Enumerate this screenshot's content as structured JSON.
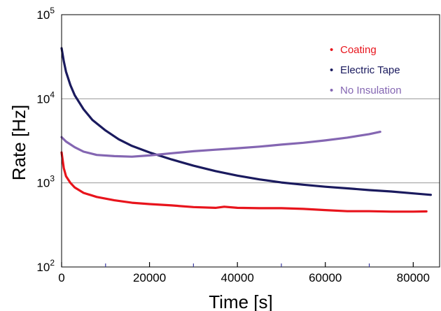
{
  "chart_data": {
    "type": "line",
    "title": "",
    "xlabel": "Time [s]",
    "ylabel": "Rate [Hz]",
    "xlim": [
      0,
      86000
    ],
    "ylim": [
      100,
      100000
    ],
    "yscale": "log",
    "x_ticks": [
      "0",
      "20000",
      "40000",
      "60000",
      "80000"
    ],
    "x_tick_values": [
      0,
      20000,
      40000,
      60000,
      80000
    ],
    "y_ticks": [
      {
        "base": "10",
        "exp": "2",
        "value": 100
      },
      {
        "base": "10",
        "exp": "3",
        "value": 1000
      },
      {
        "base": "10",
        "exp": "4",
        "value": 10000
      },
      {
        "base": "10",
        "exp": "5",
        "value": 100000
      }
    ],
    "grid": "horizontal at decades",
    "legend_position": "top-right",
    "legend_marker": "•",
    "series": [
      {
        "name": "Coating",
        "color": "#e8141c",
        "points": [
          [
            0,
            2300
          ],
          [
            500,
            1500
          ],
          [
            1000,
            1200
          ],
          [
            2000,
            1000
          ],
          [
            3000,
            880
          ],
          [
            5000,
            760
          ],
          [
            8000,
            680
          ],
          [
            12000,
            620
          ],
          [
            16000,
            580
          ],
          [
            20000,
            560
          ],
          [
            25000,
            540
          ],
          [
            30000,
            515
          ],
          [
            35000,
            505
          ],
          [
            37000,
            520
          ],
          [
            40000,
            505
          ],
          [
            45000,
            500
          ],
          [
            50000,
            500
          ],
          [
            55000,
            490
          ],
          [
            60000,
            475
          ],
          [
            65000,
            460
          ],
          [
            70000,
            460
          ],
          [
            75000,
            455
          ],
          [
            80000,
            455
          ],
          [
            83000,
            458
          ]
        ]
      },
      {
        "name": "Electric Tape",
        "color": "#1a1a5e",
        "points": [
          [
            0,
            40000
          ],
          [
            500,
            28000
          ],
          [
            1000,
            21000
          ],
          [
            2000,
            14500
          ],
          [
            3000,
            11000
          ],
          [
            5000,
            7500
          ],
          [
            7000,
            5600
          ],
          [
            10000,
            4200
          ],
          [
            13000,
            3300
          ],
          [
            16000,
            2750
          ],
          [
            20000,
            2300
          ],
          [
            25000,
            1900
          ],
          [
            30000,
            1600
          ],
          [
            35000,
            1380
          ],
          [
            40000,
            1220
          ],
          [
            45000,
            1100
          ],
          [
            50000,
            1010
          ],
          [
            55000,
            950
          ],
          [
            60000,
            900
          ],
          [
            65000,
            860
          ],
          [
            70000,
            820
          ],
          [
            75000,
            790
          ],
          [
            80000,
            750
          ],
          [
            84000,
            720
          ]
        ]
      },
      {
        "name": "No Insulation",
        "color": "#8466b2",
        "points": [
          [
            0,
            3500
          ],
          [
            1000,
            3100
          ],
          [
            3000,
            2650
          ],
          [
            5000,
            2350
          ],
          [
            8000,
            2150
          ],
          [
            12000,
            2080
          ],
          [
            16000,
            2050
          ],
          [
            20000,
            2120
          ],
          [
            25000,
            2250
          ],
          [
            30000,
            2380
          ],
          [
            35000,
            2480
          ],
          [
            40000,
            2580
          ],
          [
            45000,
            2700
          ],
          [
            50000,
            2850
          ],
          [
            55000,
            3000
          ],
          [
            60000,
            3200
          ],
          [
            65000,
            3450
          ],
          [
            70000,
            3800
          ],
          [
            72500,
            4050
          ]
        ]
      }
    ]
  }
}
